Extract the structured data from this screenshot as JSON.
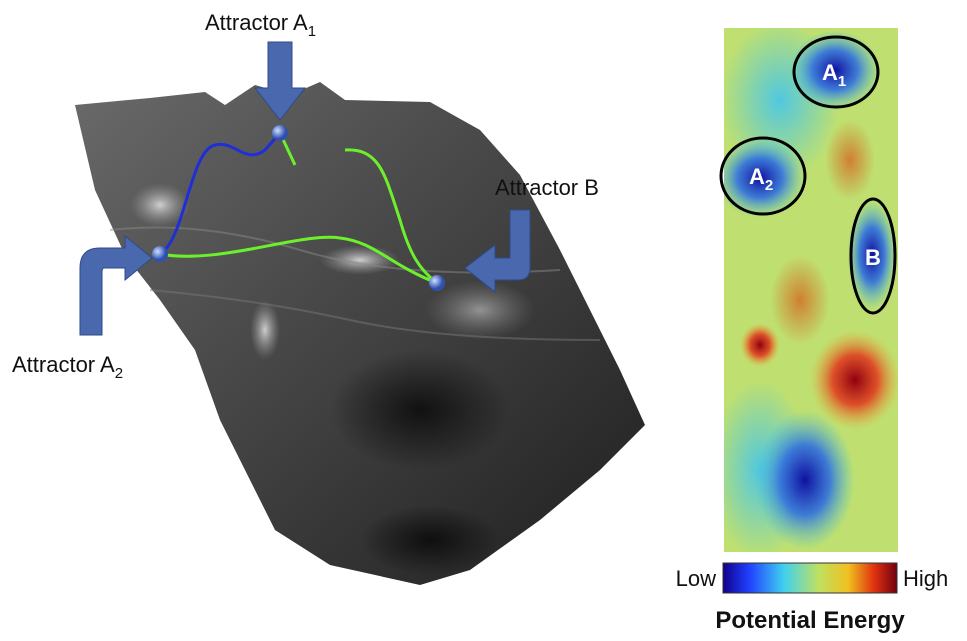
{
  "surface": {
    "labels": [
      {
        "text": "Attractor A",
        "subscript": "1"
      },
      {
        "text": "Attractor B"
      },
      {
        "text": "Attractor A",
        "subscript": "2"
      }
    ]
  },
  "heatmap": {
    "regions": [
      {
        "text": "A",
        "subscript": "1"
      },
      {
        "text": "A",
        "subscript": "2"
      },
      {
        "text": "B"
      }
    ],
    "colorbar": {
      "low": "Low",
      "high": "High",
      "title": "Potential Energy"
    }
  }
}
